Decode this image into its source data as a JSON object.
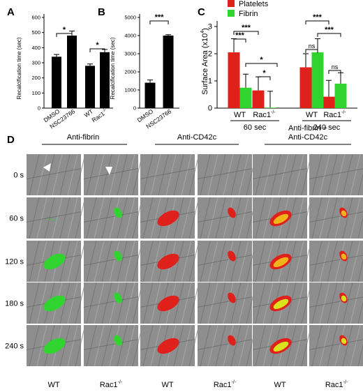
{
  "panel_labels": [
    "A",
    "B",
    "C",
    "D"
  ],
  "colors": {
    "platelets": "#e0211b",
    "fibrin": "#2fd42f",
    "bars_dark": "#000000",
    "micro_bg": "#8e8e8e"
  },
  "chart_data": [
    {
      "panel": "A",
      "type": "bar",
      "ylabel": "Recalcification time (sec)",
      "ylim": [
        0,
        600
      ],
      "yticks": [
        0,
        100,
        200,
        300,
        400,
        500,
        600
      ],
      "categories": [
        "DMSO",
        "NSC23766",
        "WT",
        "Rac1-/-"
      ],
      "category_labels": [
        "DMSO",
        "NSC23766",
        "WT",
        "Rac1"
      ],
      "category_superscripts": [
        "",
        "",
        "",
        "-/-"
      ],
      "values": [
        340,
        480,
        280,
        370
      ],
      "errors": [
        15,
        30,
        12,
        18
      ],
      "significance": [
        {
          "from": 0,
          "to": 1,
          "label": "*"
        },
        {
          "from": 2,
          "to": 3,
          "label": "*"
        }
      ]
    },
    {
      "panel": "B",
      "type": "bar",
      "ylabel": "Recalcification time (sec)",
      "ylim": [
        0,
        5000
      ],
      "yticks": [
        0,
        1000,
        2000,
        3000,
        4000,
        5000
      ],
      "categories": [
        "DMSO",
        "NSC23766"
      ],
      "values": [
        1400,
        4000
      ],
      "errors": [
        150,
        50
      ],
      "significance": [
        {
          "from": 0,
          "to": 1,
          "label": "***"
        }
      ]
    },
    {
      "panel": "C",
      "type": "bar",
      "ylabel_main": "Surface Area (x10",
      "ylabel_sup": "4",
      "ylabel_close": ")",
      "ylim": [
        0,
        3
      ],
      "yticks": [
        0,
        1,
        2,
        3
      ],
      "groups": [
        {
          "label": "WT",
          "sup": "",
          "timepoint": "60 sec"
        },
        {
          "label": "Rac1",
          "sup": "-/-",
          "timepoint": "60 sec"
        },
        {
          "label": "WT",
          "sup": "",
          "timepoint": "240 sec"
        },
        {
          "label": "Rac1",
          "sup": "-/-",
          "timepoint": "240 sec"
        }
      ],
      "timepoints": [
        "60 sec",
        "240 sec"
      ],
      "series": [
        {
          "name": "Platelets",
          "values": [
            2.05,
            0.65,
            1.5,
            0.42
          ],
          "errors": [
            0.5,
            0.5,
            0.5,
            0.6
          ]
        },
        {
          "name": "Fibrin",
          "values": [
            0.75,
            0.02,
            2.05,
            0.9
          ],
          "errors": [
            0.5,
            0.6,
            0.5,
            0.4
          ]
        }
      ],
      "significance": [
        "***",
        "***",
        "*",
        "*",
        "***",
        "ns",
        "***",
        "ns"
      ]
    }
  ],
  "panel_d": {
    "column_headers": [
      "Anti-fibrin",
      "Anti-CD42c",
      "Anti-fibrin +",
      "Anti-CD42c"
    ],
    "row_labels": [
      "0 s",
      "60 s",
      "120 s",
      "180 s",
      "240 s"
    ],
    "column_footers": [
      "WT",
      "Rac1",
      "WT",
      "Rac1",
      "WT",
      "Rac1"
    ],
    "footer_superscript": "-/-"
  }
}
